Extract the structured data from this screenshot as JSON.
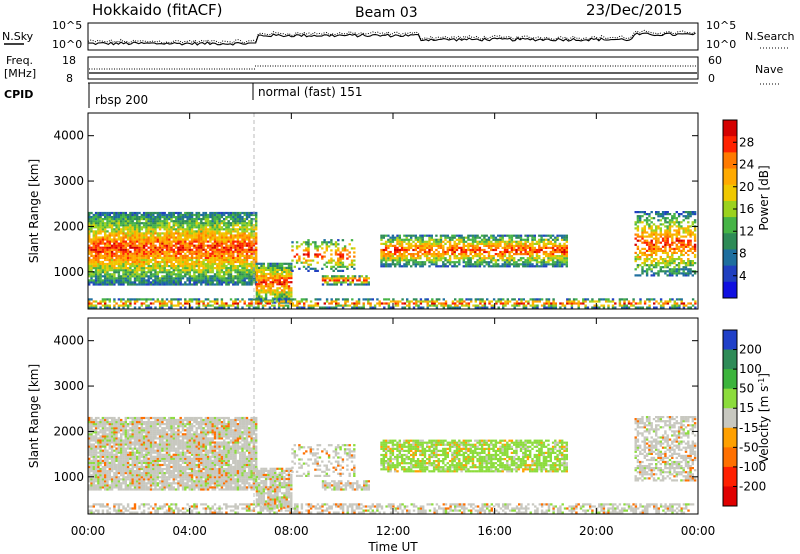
{
  "header": {
    "title": "Hokkaido (fitACF)",
    "beam": "Beam 03",
    "date": "23/Dec/2015"
  },
  "sky_panel": {
    "left_label": "N.Sky",
    "left_ticks": [
      "10^5",
      "10^0"
    ],
    "right_ticks": [
      "10^5",
      "10^0"
    ],
    "right_label": "N.Search"
  },
  "freq_panel": {
    "left_label_1": "Freq.",
    "left_label_2": "[MHz]",
    "left_ticks": [
      "18",
      "8"
    ],
    "right_ticks": [
      "60",
      "0"
    ],
    "right_label": "Nave"
  },
  "cpid_panel": {
    "label": "CPID",
    "modes": [
      {
        "name": "rbsp 200",
        "start_hour": 0
      },
      {
        "name": "normal (fast) 151",
        "start_hour": 6.5
      }
    ]
  },
  "time_axis": {
    "ticks": [
      "00:00",
      "04:00",
      "08:00",
      "12:00",
      "16:00",
      "20:00",
      "00:00"
    ],
    "label": "Time UT"
  },
  "chart_data": [
    {
      "type": "heatmap",
      "name": "power",
      "ylabel": "Slant Range [km]",
      "x_range_hours": [
        0,
        24
      ],
      "ylim": [
        180,
        4500
      ],
      "y_ticks": [
        "1000",
        "2000",
        "3000",
        "4000"
      ],
      "y_tick_values": [
        1000,
        2000,
        3000,
        4000
      ],
      "colorbar": {
        "label": "Power [dB]",
        "ticks": [
          "28",
          "24",
          "20",
          "16",
          "12",
          "8",
          "4"
        ],
        "colors": [
          "#d40000",
          "#ff2200",
          "#ff7a00",
          "#ffaa00",
          "#f0c800",
          "#9bd21e",
          "#46b446",
          "#2e8b57",
          "#1e6e9e",
          "#2040c0",
          "#1010e0"
        ]
      }
    },
    {
      "type": "heatmap",
      "name": "velocity",
      "ylabel": "Slant Range [km]",
      "x_range_hours": [
        0,
        24
      ],
      "ylim": [
        180,
        4500
      ],
      "y_ticks": [
        "1000",
        "2000",
        "3000",
        "4000"
      ],
      "y_tick_values": [
        1000,
        2000,
        3000,
        4000
      ],
      "colorbar": {
        "label": "Velocity [m s",
        "label_sup": "-1",
        "ticks": [
          "200",
          "100",
          "50",
          "15",
          "-15",
          "-50",
          "-100",
          "-200"
        ],
        "colors": [
          "#2040c8",
          "#2e8b57",
          "#3cb43c",
          "#8cdc3c",
          "#c8c8c0",
          "#ffa000",
          "#ff7000",
          "#ff2000",
          "#e00000"
        ]
      }
    }
  ]
}
